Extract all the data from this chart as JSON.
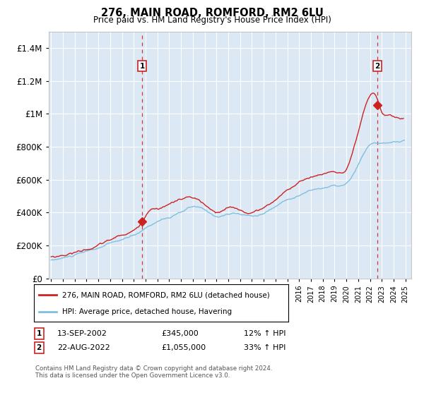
{
  "title1": "276, MAIN ROAD, ROMFORD, RM2 6LU",
  "title2": "Price paid vs. HM Land Registry's House Price Index (HPI)",
  "bg_color": "#dce9f5",
  "grid_color": "#ffffff",
  "hpi_color": "#7fbfdf",
  "price_color": "#cc2222",
  "dashed_color": "#cc2222",
  "ylim": [
    0,
    1500000
  ],
  "yticks": [
    0,
    200000,
    400000,
    600000,
    800000,
    1000000,
    1200000,
    1400000
  ],
  "ytick_labels": [
    "£0",
    "£200K",
    "£400K",
    "£600K",
    "£800K",
    "£1M",
    "£1.2M",
    "£1.4M"
  ],
  "legend1": "276, MAIN ROAD, ROMFORD, RM2 6LU (detached house)",
  "legend2": "HPI: Average price, detached house, Havering",
  "label1_date": "13-SEP-2002",
  "label1_price": "£345,000",
  "label1_hpi": "12% ↑ HPI",
  "label2_date": "22-AUG-2022",
  "label2_price": "£1,055,000",
  "label2_hpi": "33% ↑ HPI",
  "footnote": "Contains HM Land Registry data © Crown copyright and database right 2024.\nThis data is licensed under the Open Government Licence v3.0.",
  "sale1_year": 2002.71,
  "sale1_price": 345000,
  "sale2_year": 2022.63,
  "sale2_price": 1055000,
  "xmin": 1994.8,
  "xmax": 2025.5
}
